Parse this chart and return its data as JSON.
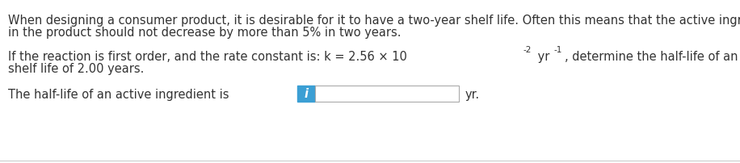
{
  "bg_color": "#ffffff",
  "text_color": "#333333",
  "line_color": "#cccccc",
  "para1_line1": "When designing a consumer product, it is desirable for it to have a two-year shelf life. Often this means that the active ingredient",
  "para1_line2": "in the product should not decrease by more than 5% in two years.",
  "para2_line1": "If the reaction is first order, and the rate constant is: k = 2.56 × 10",
  "para2_sup1": "-2",
  "para2_mid": " yr",
  "para2_sup2": "-1",
  "para2_end": ", determine the half-life of an active ingredient that has a",
  "para2_line2": "shelf life of 2.00 years.",
  "para3_prefix": "The half-life of an active ingredient is",
  "para3_suffix": "yr.",
  "info_btn_color": "#3b9fd4",
  "info_btn_text": "i",
  "input_box_color": "#ffffff",
  "input_box_border": "#aaaaaa",
  "font_size": 10.5
}
